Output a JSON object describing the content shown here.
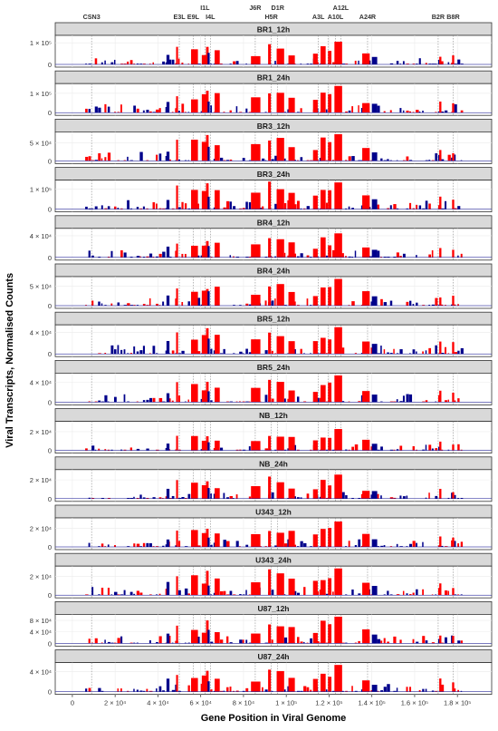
{
  "chart_data": {
    "type": "bar",
    "ylabel": "Viral Transcripts, Normalised Counts",
    "xlabel": "Gene Position in Viral Genome",
    "x_ticks": [
      {
        "value": 0,
        "label": "0"
      },
      {
        "value": 20000,
        "label": "2 × 10⁴"
      },
      {
        "value": 40000,
        "label": "4 × 10⁴"
      },
      {
        "value": 60000,
        "label": "6 × 10⁴"
      },
      {
        "value": 80000,
        "label": "8 × 10⁴"
      },
      {
        "value": 100000,
        "label": "1 × 10⁵"
      },
      {
        "value": 120000,
        "label": "1.2 × 10⁵"
      },
      {
        "value": 140000,
        "label": "1.4 × 10⁵"
      },
      {
        "value": 160000,
        "label": "1.6 × 10⁵"
      },
      {
        "value": 180000,
        "label": "1.8 × 10⁵"
      }
    ],
    "xlim": [
      -8000,
      196000
    ],
    "grid": true,
    "colors": {
      "forward": "#ff0000",
      "reverse": "#00008b",
      "strip": "#d9d9d9",
      "grid": "#ebebeb"
    },
    "gene_labels": [
      {
        "label": "CSN3",
        "x": 9000,
        "row": 1
      },
      {
        "label": "E3L",
        "x": 50000,
        "row": 1
      },
      {
        "label": "E9L",
        "x": 56500,
        "row": 1
      },
      {
        "label": "I1L",
        "x": 62000,
        "row": 0
      },
      {
        "label": "I4L",
        "x": 64500,
        "row": 1
      },
      {
        "label": "J6R",
        "x": 85500,
        "row": 0
      },
      {
        "label": "H5R",
        "x": 93000,
        "row": 1
      },
      {
        "label": "D1R",
        "x": 96000,
        "row": 0
      },
      {
        "label": "A3L",
        "x": 115000,
        "row": 1
      },
      {
        "label": "A12L",
        "x": 125500,
        "row": 0
      },
      {
        "label": "A10L",
        "x": 123000,
        "row": 1
      },
      {
        "label": "A24R",
        "x": 138000,
        "row": 1
      },
      {
        "label": "B2R",
        "x": 171000,
        "row": 1
      },
      {
        "label": "B8R",
        "x": 178000,
        "row": 1
      }
    ],
    "gene_lines": [
      9000,
      50000,
      56500,
      62000,
      64500,
      85500,
      93000,
      96000,
      115000,
      119500,
      123000,
      125500,
      138000,
      171000,
      178000
    ],
    "peak_genes": [
      {
        "x": 48500,
        "w": 900,
        "strand": "+",
        "h": 0.72
      },
      {
        "x": 55500,
        "w": 3200,
        "strand": "+",
        "h": 0.62
      },
      {
        "x": 60500,
        "w": 2800,
        "strand": "+",
        "h": 0.55
      },
      {
        "x": 62500,
        "w": 1200,
        "strand": "+",
        "h": 0.8
      },
      {
        "x": 66500,
        "w": 2400,
        "strand": "+",
        "h": 0.58
      },
      {
        "x": 83500,
        "w": 4400,
        "strand": "+",
        "h": 0.5
      },
      {
        "x": 91500,
        "w": 1300,
        "strand": "+",
        "h": 0.85
      },
      {
        "x": 95500,
        "w": 3500,
        "strand": "+",
        "h": 0.68
      },
      {
        "x": 101000,
        "w": 3000,
        "strand": "+",
        "h": 0.55
      },
      {
        "x": 112500,
        "w": 2200,
        "strand": "+",
        "h": 0.45
      },
      {
        "x": 116000,
        "w": 2400,
        "strand": "+",
        "h": 0.72
      },
      {
        "x": 119500,
        "w": 1600,
        "strand": "+",
        "h": 0.65
      },
      {
        "x": 122500,
        "w": 3600,
        "strand": "+",
        "h": 0.95
      },
      {
        "x": 135500,
        "w": 3500,
        "strand": "+",
        "h": 0.45
      },
      {
        "x": 44000,
        "w": 1400,
        "strand": "-",
        "h": 0.4
      },
      {
        "x": 63200,
        "w": 1000,
        "strand": "-",
        "h": 0.45
      },
      {
        "x": 140000,
        "w": 2500,
        "strand": "-",
        "h": 0.3
      },
      {
        "x": 171500,
        "w": 1000,
        "strand": "+",
        "h": 0.4
      },
      {
        "x": 177500,
        "w": 1000,
        "strand": "+",
        "h": 0.35
      }
    ],
    "panels": [
      {
        "name": "BR1_12h",
        "ymax": 130000,
        "tick": 100000,
        "tick_label": "1 × 10⁵",
        "scale": 0.75,
        "seed": 11
      },
      {
        "name": "BR1_24h",
        "ymax": 145000,
        "tick": 100000,
        "tick_label": "1 × 10⁵",
        "scale": 1.0,
        "seed": 23
      },
      {
        "name": "BR3_12h",
        "ymax": 78000,
        "tick": 50000,
        "tick_label": "5 × 10⁴",
        "scale": 1.0,
        "seed": 37
      },
      {
        "name": "BR3_24h",
        "ymax": 140000,
        "tick": 100000,
        "tick_label": "1 × 10⁵",
        "scale": 1.0,
        "seed": 41
      },
      {
        "name": "BR4_12h",
        "ymax": 52000,
        "tick": 40000,
        "tick_label": "4 × 10⁴",
        "scale": 0.8,
        "seed": 53
      },
      {
        "name": "BR4_24h",
        "ymax": 72000,
        "tick": 50000,
        "tick_label": "5 × 10⁴",
        "scale": 0.95,
        "seed": 67
      },
      {
        "name": "BR5_12h",
        "ymax": 52000,
        "tick": 40000,
        "tick_label": "4 × 10⁴",
        "scale": 1.0,
        "seed": 71
      },
      {
        "name": "BR5_24h",
        "ymax": 56000,
        "tick": 40000,
        "tick_label": "4 × 10⁴",
        "scale": 0.9,
        "seed": 83
      },
      {
        "name": "NB_12h",
        "ymax": 30000,
        "tick": 20000,
        "tick_label": "2 × 10⁴",
        "scale": 0.7,
        "seed": 97
      },
      {
        "name": "NB_24h",
        "ymax": 30000,
        "tick": 20000,
        "tick_label": "2 × 10⁴",
        "scale": 0.8,
        "seed": 101
      },
      {
        "name": "U343_12h",
        "ymax": 30000,
        "tick": 20000,
        "tick_label": "2 × 10⁴",
        "scale": 0.85,
        "seed": 113
      },
      {
        "name": "U343_24h",
        "ymax": 30000,
        "tick": 20000,
        "tick_label": "2 × 10⁴",
        "scale": 0.95,
        "seed": 127
      },
      {
        "name": "U87_12h",
        "ymax": 98000,
        "tick": [
          40000,
          80000
        ],
        "tick_label": [
          "4 × 10⁴",
          "8 × 10⁴"
        ],
        "scale": 0.9,
        "seed": 131
      },
      {
        "name": "U87_24h",
        "ymax": 56000,
        "tick": 40000,
        "tick_label": "4 × 10⁴",
        "scale": 0.95,
        "seed": 139
      }
    ]
  }
}
